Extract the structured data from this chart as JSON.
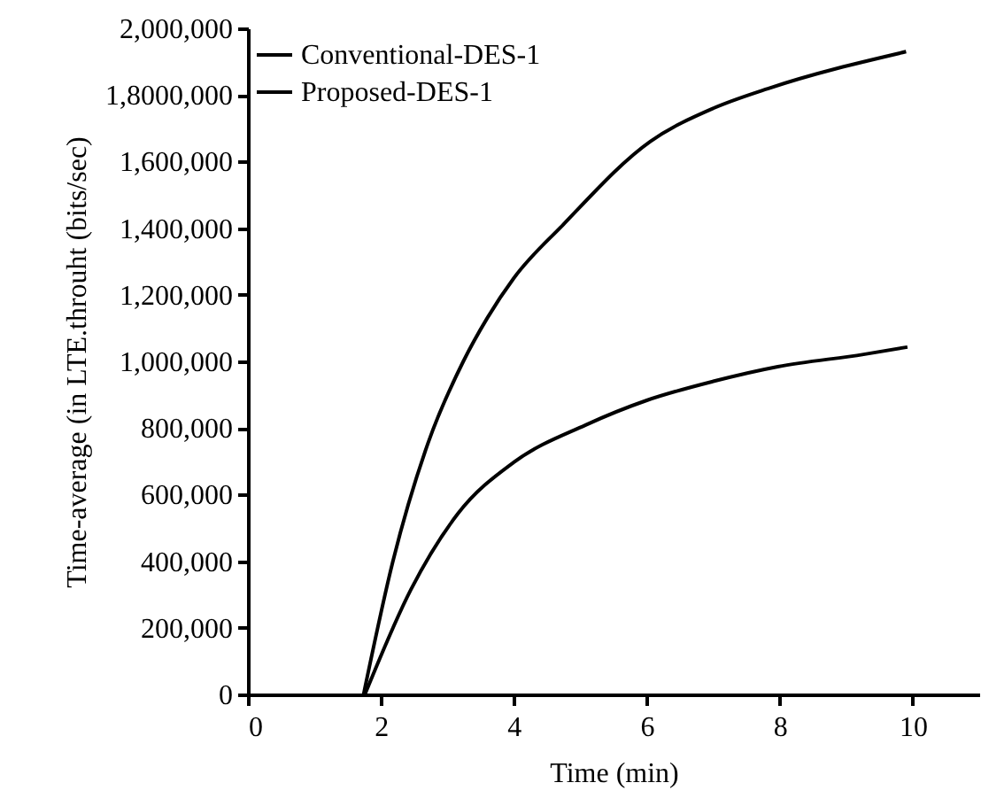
{
  "chart_data": {
    "type": "line",
    "xlabel": "Time (min)",
    "ylabel": "Time-average (in LTE.throuht (bits/sec)",
    "xlim": [
      0,
      11
    ],
    "xticks": [
      0,
      2,
      4,
      6,
      8,
      10
    ],
    "ylim": [
      0,
      2000000
    ],
    "yticks": [
      {
        "value": 0,
        "label": "0"
      },
      {
        "value": 200000,
        "label": "200,000"
      },
      {
        "value": 400000,
        "label": "400,000"
      },
      {
        "value": 600000,
        "label": "600,000"
      },
      {
        "value": 800000,
        "label": "800,000"
      },
      {
        "value": 1000000,
        "label": "1,000,000"
      },
      {
        "value": 1200000,
        "label": "1,200,000"
      },
      {
        "value": 1400000,
        "label": "1,400,000"
      },
      {
        "value": 1600000,
        "label": "1,600,000"
      },
      {
        "value": 1800000,
        "label": "1,8000,000"
      },
      {
        "value": 2000000,
        "label": "2,000,000"
      }
    ],
    "grid": false,
    "legend": "top left",
    "series": [
      {
        "name": "Conventional-DES-1",
        "color": "#000000",
        "x": [
          1.76,
          2.45,
          3.16,
          4,
          5.08,
          6,
          7,
          7.97,
          9.26,
          9.92
        ],
        "values": [
          0,
          314000,
          543000,
          697000,
          809000,
          883000,
          940000,
          984000,
          1021000,
          1043000
        ]
      },
      {
        "name": "Proposed-DES-1",
        "color": "#000000",
        "x": [
          1.74,
          2.18,
          2.71,
          3.24,
          3.6,
          4,
          4.74,
          6.05,
          7,
          7.82,
          9.9
        ],
        "values": [
          0,
          399000,
          755000,
          1000000,
          1130000,
          1250000,
          1410000,
          1660000,
          1760000,
          1819000,
          1930000
        ]
      }
    ]
  }
}
